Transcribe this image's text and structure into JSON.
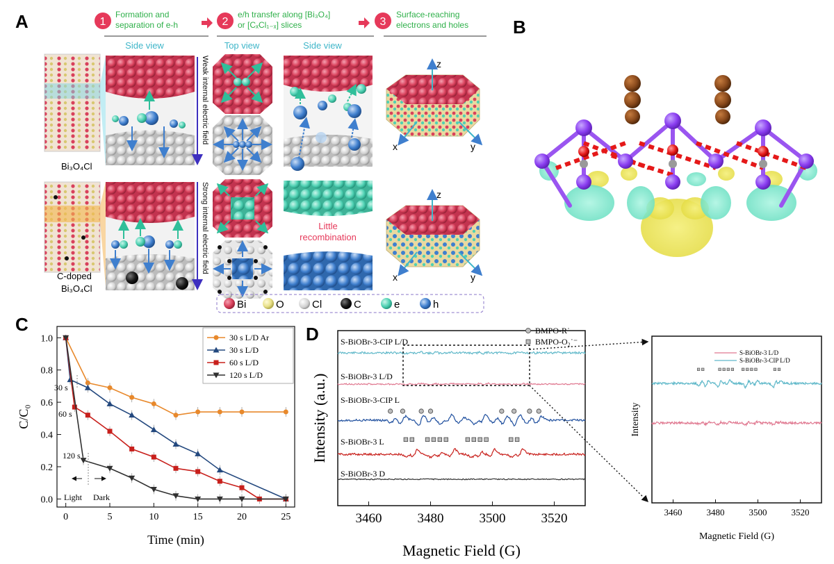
{
  "panel_a": {
    "letter": "A",
    "steps": [
      {
        "num": "1",
        "line1": "Formation and",
        "line2": "separation of e-h"
      },
      {
        "num": "2",
        "line1": "e/h transfer along [Bi₃O₄]",
        "line2": "or [CₓCl₁₋ₓ] slices"
      },
      {
        "num": "3",
        "line1": "Surface-reaching",
        "line2": "electrons and holes"
      }
    ],
    "side_view": "Side view",
    "top_view": "Top view",
    "side_view_2": "Side view",
    "field_weak": "Weak internal electric field",
    "field_strong": "Strong internal electric field",
    "material_1": "Bi₃O₄Cl",
    "material_2_line1": "C-doped",
    "material_2_line2": "Bi₃O₄Cl",
    "little_line1": "Little",
    "little_line2": "recombination",
    "axis_z": "z",
    "axis_x": "x",
    "axis_y": "y",
    "legend": [
      {
        "label": "Bi",
        "color": "#d9415c"
      },
      {
        "label": "O",
        "color": "#e8e089"
      },
      {
        "label": "Cl",
        "color": "#d5d5d5"
      },
      {
        "label": "C",
        "color": "#1a1a1a"
      },
      {
        "label": "e",
        "color": "#4fd1b3"
      },
      {
        "label": "h",
        "color": "#3f7fce"
      }
    ]
  },
  "panel_b": {
    "letter": "B"
  },
  "panel_c": {
    "letter": "C",
    "annotations": {
      "light": "Light",
      "dark": "Dark",
      "t30": "30 s",
      "t60": "60 s",
      "t120": "120 s"
    }
  },
  "panel_d": {
    "letter": "D",
    "trace_labels": [
      "S-BiOBr-3-CIP  L/D",
      "S-BiOBr-3 L/D",
      "S-BiOBr-3-CIP  L",
      "S-BiOBr-3  L",
      "S-BiOBr-3  D"
    ],
    "legend": {
      "circle": "BMPO-R˙",
      "square": "BMPO-O₂˙⁻"
    },
    "inset": {
      "legend": [
        "S-BiOBr-3  L/D",
        "S-BiOBr-3-CIP  L/D"
      ],
      "ylabel": "Intensity",
      "xlabel": "Magnetic Field (G)"
    }
  },
  "chart_data": [
    {
      "type": "line",
      "xlabel": "Time (min)",
      "ylabel": "C/C₀",
      "xlim": [
        -1,
        26
      ],
      "ylim": [
        -0.05,
        1.07
      ],
      "xticks": [
        0,
        5,
        10,
        15,
        20,
        25
      ],
      "yticks": [
        0.0,
        0.2,
        0.4,
        0.6,
        0.8,
        1.0
      ],
      "legend_position": "top-right",
      "series": [
        {
          "name": "30 s L/D Ar",
          "color": "#e8892c",
          "marker": "circle",
          "x": [
            0,
            2.5,
            5,
            7.5,
            10,
            12.5,
            15,
            17.5,
            20,
            25
          ],
          "y": [
            1.0,
            0.72,
            0.69,
            0.63,
            0.59,
            0.52,
            0.54,
            0.54,
            0.54,
            0.54
          ]
        },
        {
          "name": "30 s L/D",
          "color": "#23487e",
          "marker": "triangle",
          "x": [
            0,
            0.5,
            2.5,
            5,
            7.5,
            10,
            12.5,
            15,
            17.5,
            25
          ],
          "y": [
            1.0,
            0.74,
            0.69,
            0.59,
            0.52,
            0.43,
            0.34,
            0.28,
            0.18,
            0.0
          ]
        },
        {
          "name": "60 s L/D",
          "color": "#c8201c",
          "marker": "square",
          "x": [
            0,
            1,
            2.5,
            5,
            7.5,
            10,
            12.5,
            15,
            17.5,
            20,
            22,
            25
          ],
          "y": [
            1.0,
            0.57,
            0.52,
            0.42,
            0.31,
            0.26,
            0.19,
            0.17,
            0.11,
            0.07,
            0.0,
            0.0
          ]
        },
        {
          "name": "120 s L/D",
          "color": "#303030",
          "marker": "triangle-down",
          "x": [
            0,
            2,
            5,
            7.5,
            10,
            12.5,
            15,
            17.5,
            20,
            25
          ],
          "y": [
            1.0,
            0.24,
            0.19,
            0.13,
            0.06,
            0.02,
            0.0,
            0.0,
            0.0,
            0.0
          ]
        }
      ]
    },
    {
      "type": "line",
      "xlabel": "Magnetic Field (G)",
      "ylabel": "Intensity (a.u.)",
      "xlim": [
        3450,
        3530
      ],
      "xticks": [
        3460,
        3480,
        3500,
        3520
      ]
    }
  ]
}
